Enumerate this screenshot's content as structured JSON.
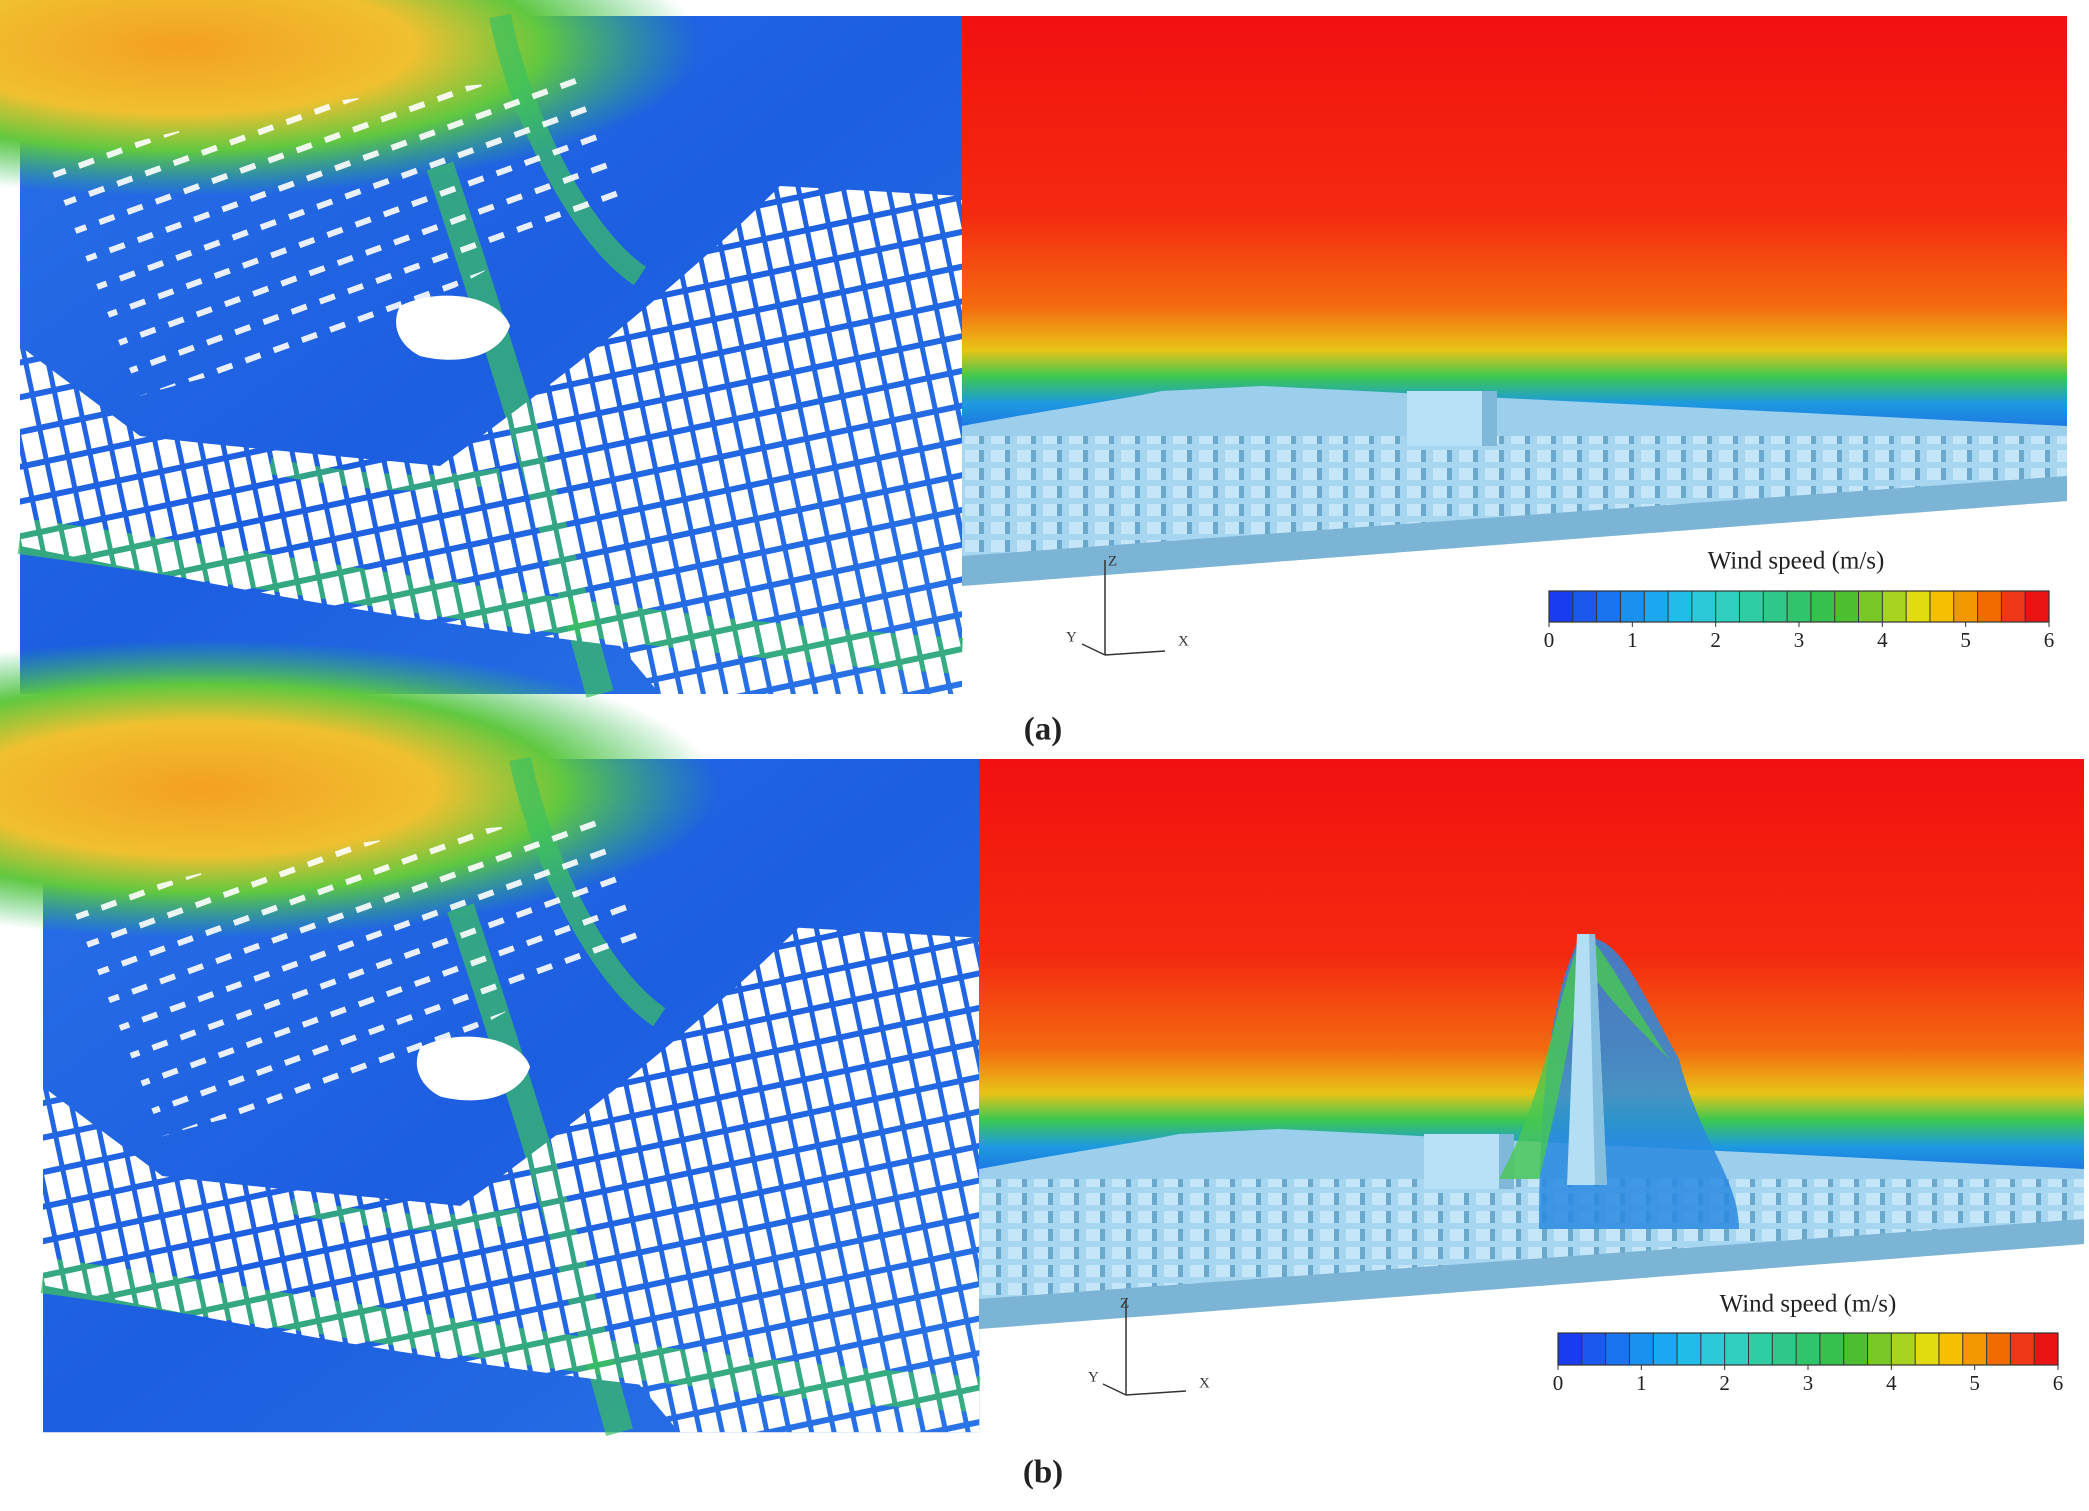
{
  "legend_colors": [
    "#1a3cf0",
    "#1a58f0",
    "#1a74f0",
    "#1a90f0",
    "#1ca8f0",
    "#22bce8",
    "#2ccad8",
    "#30d0c0",
    "#30cca4",
    "#30c888",
    "#30c46c",
    "#36c04c",
    "#4cc030",
    "#7ac828",
    "#a8d420",
    "#e0dc10",
    "#f4c000",
    "#f49800",
    "#f06c00",
    "#ee3818",
    "#ea1414"
  ],
  "panels": [
    {
      "label": "(a)",
      "legend": {
        "title": "Wind speed (m/s)",
        "lim": [
          0,
          6
        ],
        "ticks": [
          0,
          1,
          2,
          3,
          4,
          5,
          6
        ]
      },
      "axes": {
        "z": "Z",
        "y": "Y",
        "x": "X"
      }
    },
    {
      "label": "(b)",
      "legend": {
        "title": "Wind speed (m/s)",
        "lim": [
          0,
          6
        ],
        "ticks": [
          0,
          1,
          2,
          3,
          4,
          5,
          6
        ]
      },
      "axes": {
        "z": "Z",
        "y": "Y",
        "x": "X"
      }
    }
  ]
}
